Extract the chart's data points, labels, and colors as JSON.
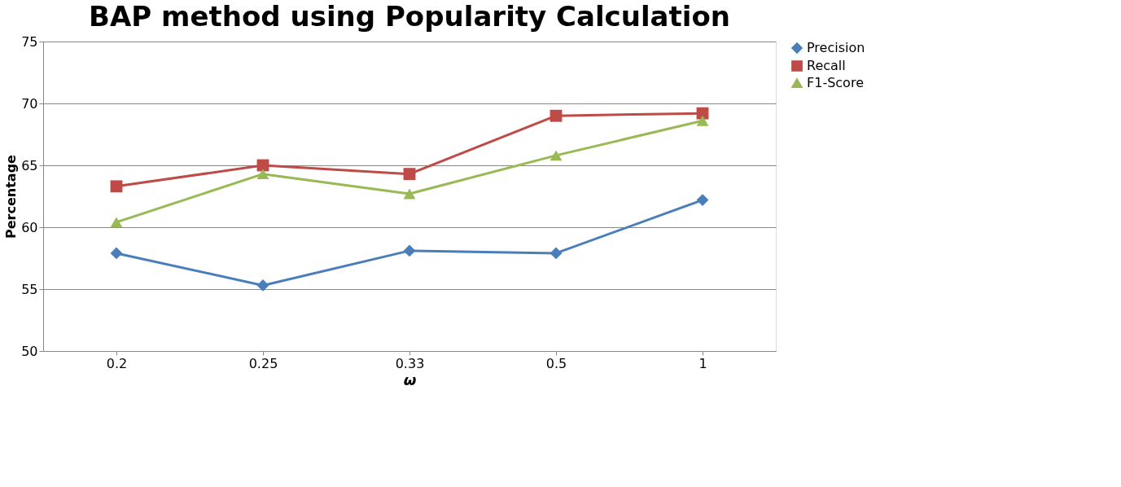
{
  "chart_data": {
    "type": "line",
    "title": "BAP method using Popularity Calculation",
    "xlabel": "ω",
    "ylabel": "Percentage",
    "categories": [
      "0.2",
      "0.25",
      "0.33",
      "0.5",
      "1"
    ],
    "series": [
      {
        "name": "Precision",
        "color": "#4a7ebb",
        "marker": "diamond",
        "values": [
          57.9,
          55.3,
          58.1,
          57.9,
          62.2
        ]
      },
      {
        "name": "Recall",
        "color": "#be4b48",
        "marker": "square",
        "values": [
          63.3,
          65.0,
          64.3,
          69.0,
          69.2
        ]
      },
      {
        "name": "F1-Score",
        "color": "#98b954",
        "marker": "triangle",
        "values": [
          60.4,
          64.3,
          62.7,
          65.8,
          68.6
        ]
      }
    ],
    "ylim": [
      50,
      75
    ],
    "yticks": [
      50,
      55,
      60,
      65,
      70,
      75
    ],
    "grid": "y",
    "legend": "right",
    "line_style": "solid"
  }
}
